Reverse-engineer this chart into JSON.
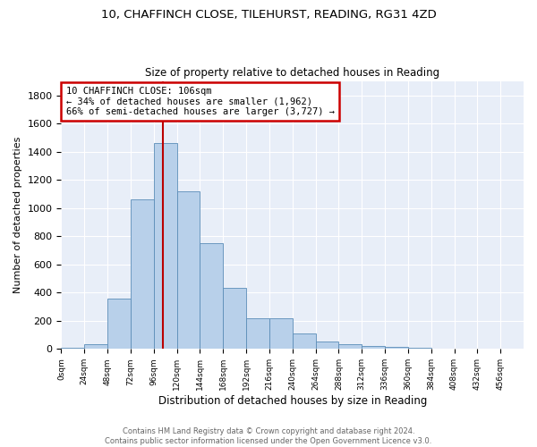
{
  "title_line1": "10, CHAFFINCH CLOSE, TILEHURST, READING, RG31 4ZD",
  "title_line2": "Size of property relative to detached houses in Reading",
  "xlabel": "Distribution of detached houses by size in Reading",
  "ylabel": "Number of detached properties",
  "bar_values": [
    10,
    35,
    360,
    1060,
    1465,
    1120,
    750,
    435,
    220,
    220,
    110,
    55,
    35,
    20,
    15,
    10,
    5,
    3,
    2,
    1
  ],
  "bin_edges": [
    0,
    24,
    48,
    72,
    96,
    120,
    144,
    168,
    192,
    216,
    240,
    264,
    288,
    312,
    336,
    360,
    384,
    408,
    432,
    456,
    480
  ],
  "bar_color": "#b8d0ea",
  "bar_edge_color": "#5b8db8",
  "background_color": "#e8eef8",
  "grid_color": "#ffffff",
  "vline_x": 106,
  "vline_color": "#bb0000",
  "annotation_title": "10 CHAFFINCH CLOSE: 106sqm",
  "annotation_line1": "← 34% of detached houses are smaller (1,962)",
  "annotation_line2": "66% of semi-detached houses are larger (3,727) →",
  "annotation_box_color": "#cc0000",
  "ylim": [
    0,
    1900
  ],
  "yticks": [
    0,
    200,
    400,
    600,
    800,
    1000,
    1200,
    1400,
    1600,
    1800
  ],
  "footer_line1": "Contains HM Land Registry data © Crown copyright and database right 2024.",
  "footer_line2": "Contains public sector information licensed under the Open Government Licence v3.0."
}
